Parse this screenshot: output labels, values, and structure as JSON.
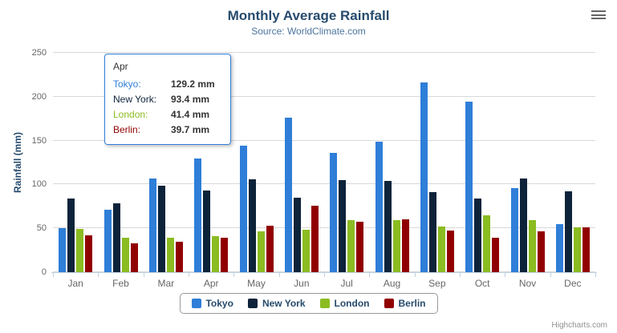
{
  "header": {
    "title": "Monthly Average Rainfall",
    "subtitle": "Source: WorldClimate.com"
  },
  "y_axis": {
    "title": "Rainfall (mm)"
  },
  "chart_data": {
    "type": "bar",
    "title": "Monthly Average Rainfall",
    "subtitle": "Source: WorldClimate.com",
    "xlabel": "",
    "ylabel": "Rainfall (mm)",
    "ylim": [
      0,
      250
    ],
    "yticks": [
      0,
      50,
      100,
      150,
      200,
      250
    ],
    "grid": true,
    "legend_position": "bottom",
    "categories": [
      "Jan",
      "Feb",
      "Mar",
      "Apr",
      "May",
      "Jun",
      "Jul",
      "Aug",
      "Sep",
      "Oct",
      "Nov",
      "Dec"
    ],
    "series": [
      {
        "name": "Tokyo",
        "color": "#2f7ed8",
        "values": [
          49.9,
          71.5,
          106.4,
          129.2,
          144.0,
          176.0,
          135.6,
          148.5,
          216.4,
          194.1,
          95.6,
          54.4
        ]
      },
      {
        "name": "New York",
        "color": "#0d233a",
        "values": [
          83.6,
          78.8,
          98.5,
          93.4,
          106.0,
          84.5,
          105.0,
          104.3,
          91.2,
          83.5,
          106.6,
          92.3
        ]
      },
      {
        "name": "London",
        "color": "#8bbc21",
        "values": [
          48.9,
          38.8,
          39.3,
          41.4,
          47.0,
          48.3,
          59.0,
          59.6,
          52.4,
          65.2,
          59.3,
          51.2
        ]
      },
      {
        "name": "Berlin",
        "color": "#910000",
        "values": [
          42.4,
          33.2,
          34.5,
          39.7,
          52.6,
          75.5,
          57.4,
          60.4,
          47.6,
          39.1,
          46.8,
          51.1
        ]
      }
    ]
  },
  "tooltip": {
    "category": "Apr",
    "border_color": "#2f7ed8",
    "rows": [
      {
        "name": "Tokyo:",
        "color": "#2f7ed8",
        "value": "129.2 mm"
      },
      {
        "name": "New York:",
        "color": "#0d233a",
        "value": "93.4 mm"
      },
      {
        "name": "London:",
        "color": "#8bbc21",
        "value": "41.4 mm"
      },
      {
        "name": "Berlin:",
        "color": "#910000",
        "value": "39.7 mm"
      }
    ]
  },
  "legend": {
    "items": [
      {
        "label": "Tokyo",
        "color": "#2f7ed8"
      },
      {
        "label": "New York",
        "color": "#0d233a"
      },
      {
        "label": "London",
        "color": "#8bbc21"
      },
      {
        "label": "Berlin",
        "color": "#910000"
      }
    ]
  },
  "export_menu": {
    "icon": "hamburger-icon"
  },
  "credits": {
    "label": "Highcharts.com"
  }
}
